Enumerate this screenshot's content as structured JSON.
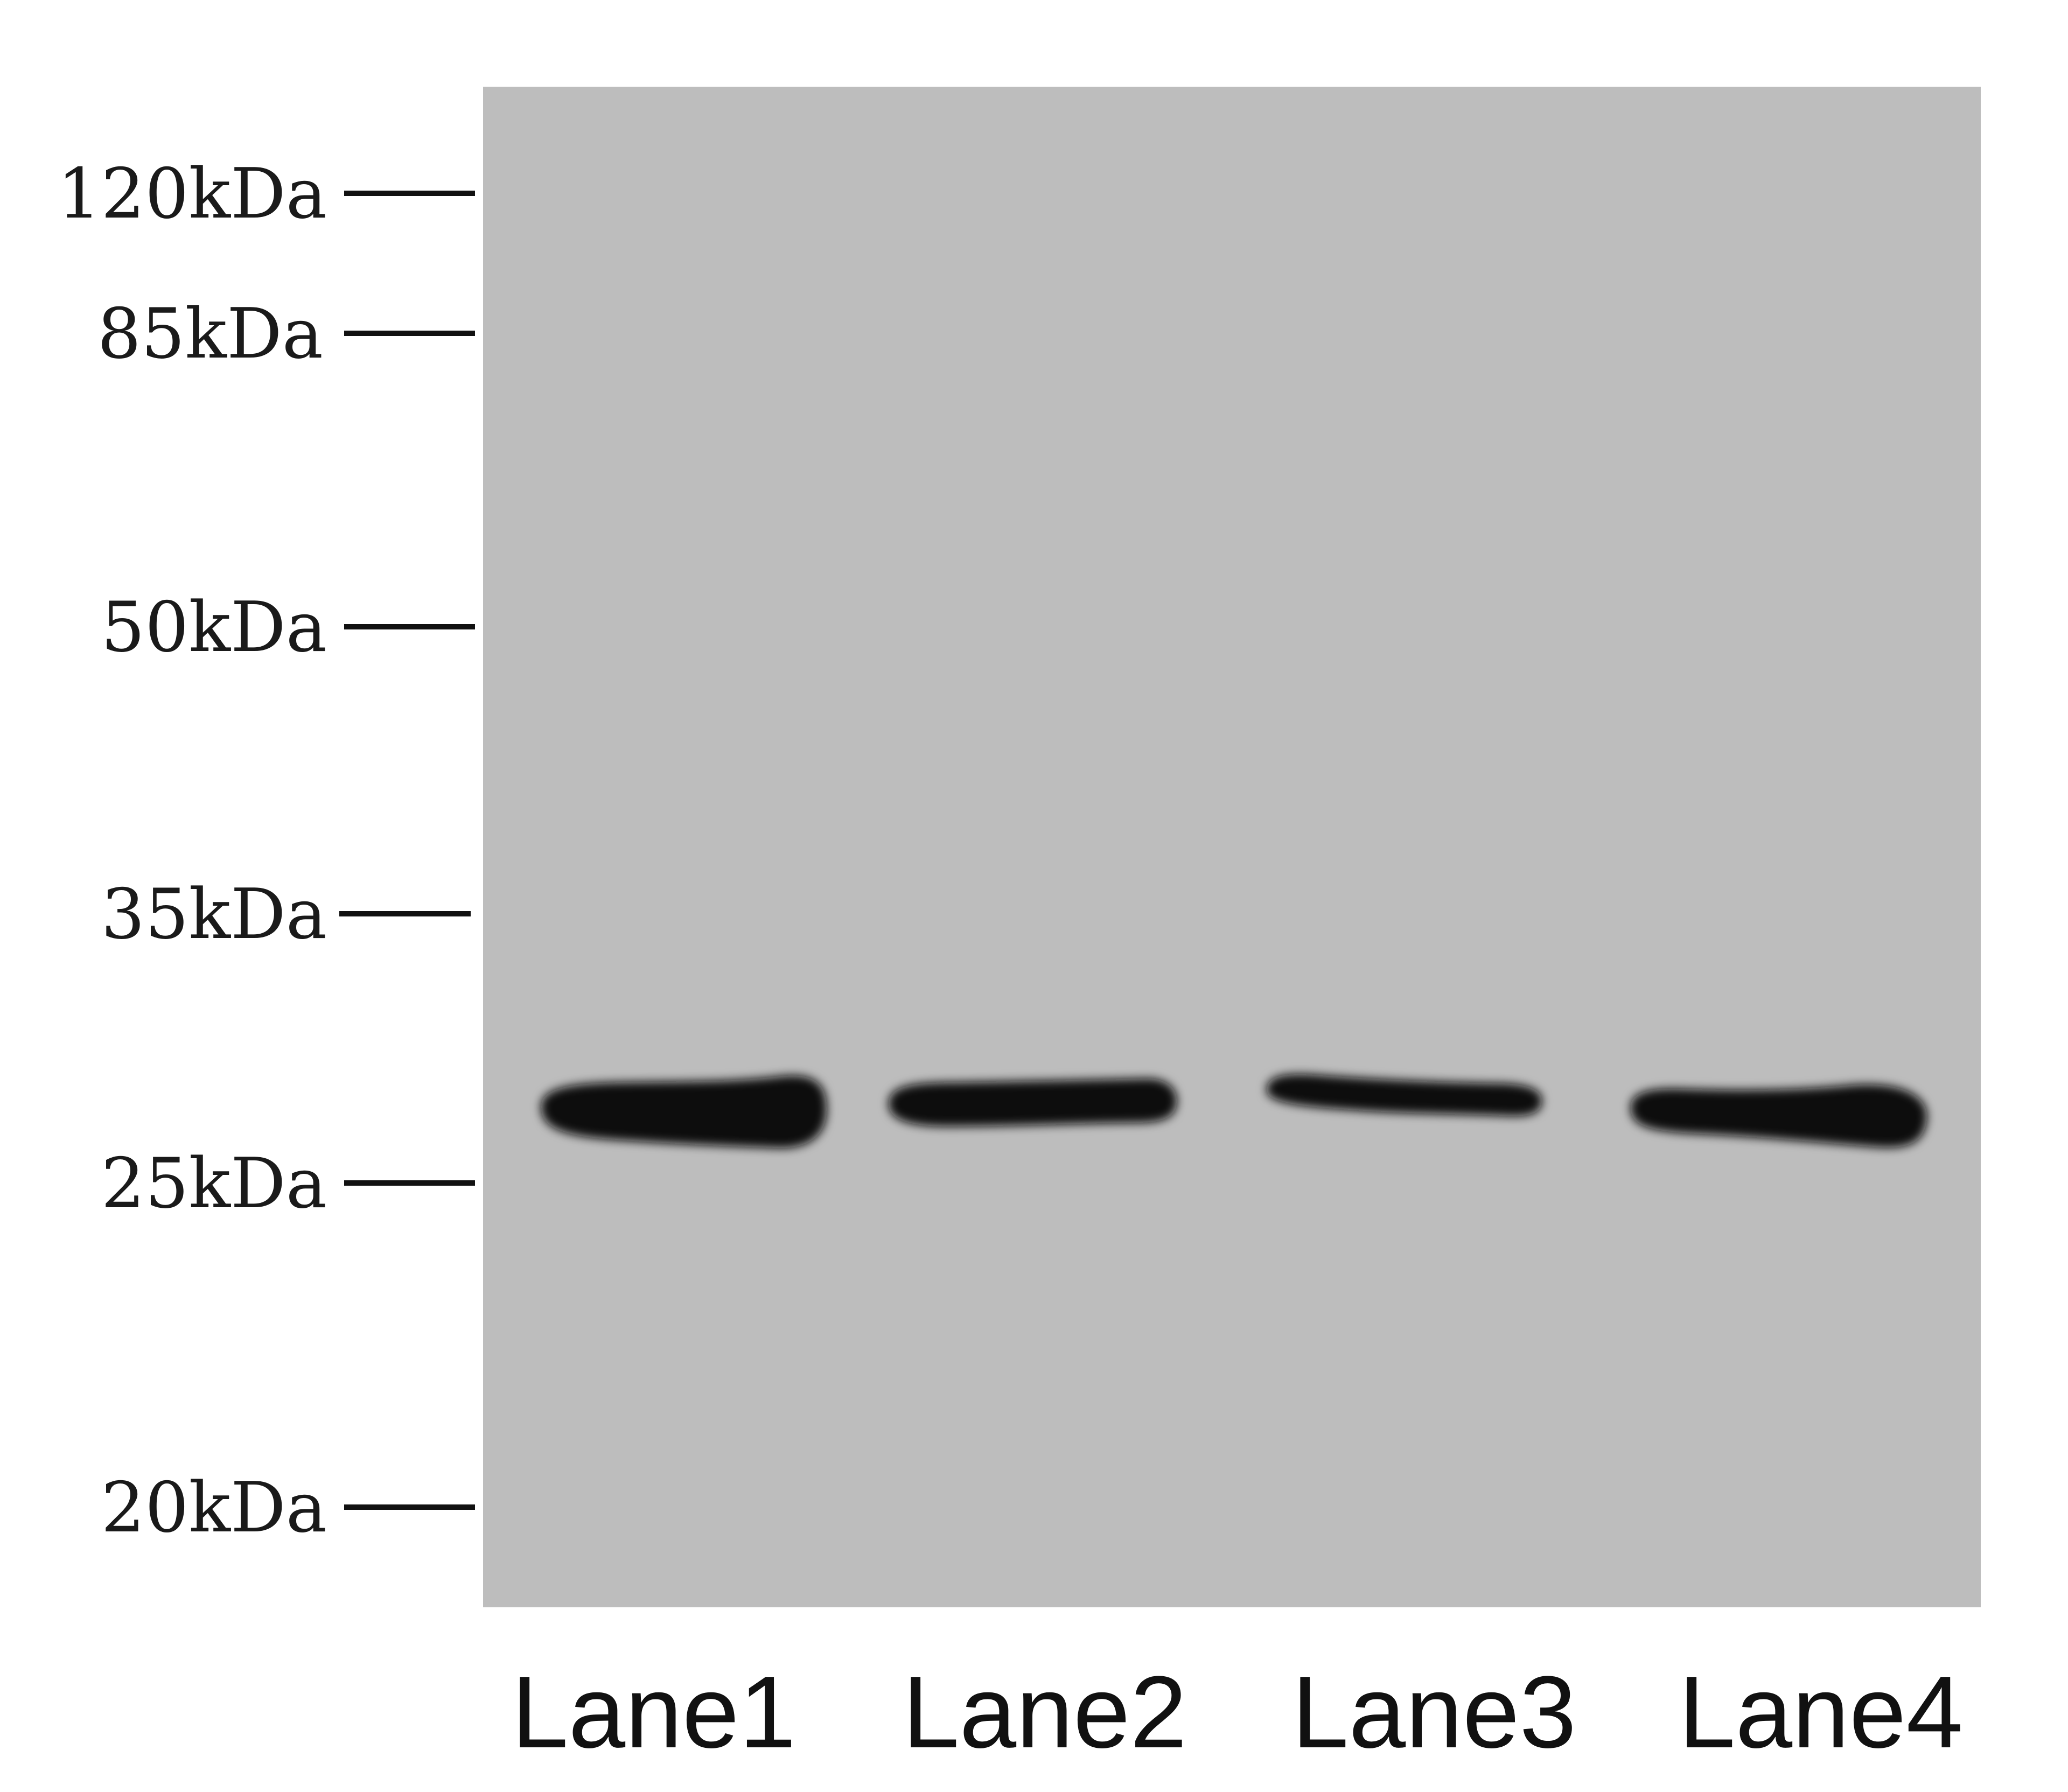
{
  "colors": {
    "background": "#ffffff",
    "membrane": "#bdbdbd",
    "band": "#0d0d0d",
    "marker_line": "#111111"
  },
  "markers": [
    {
      "label": "120kDa"
    },
    {
      "label": "85kDa"
    },
    {
      "label": "50kDa"
    },
    {
      "label": "35kDa"
    },
    {
      "label": "25kDa"
    },
    {
      "label": "20kDa"
    }
  ],
  "lanes": [
    {
      "label": "Lane1"
    },
    {
      "label": "Lane2"
    },
    {
      "label": "Lane3"
    },
    {
      "label": "Lane4"
    }
  ]
}
